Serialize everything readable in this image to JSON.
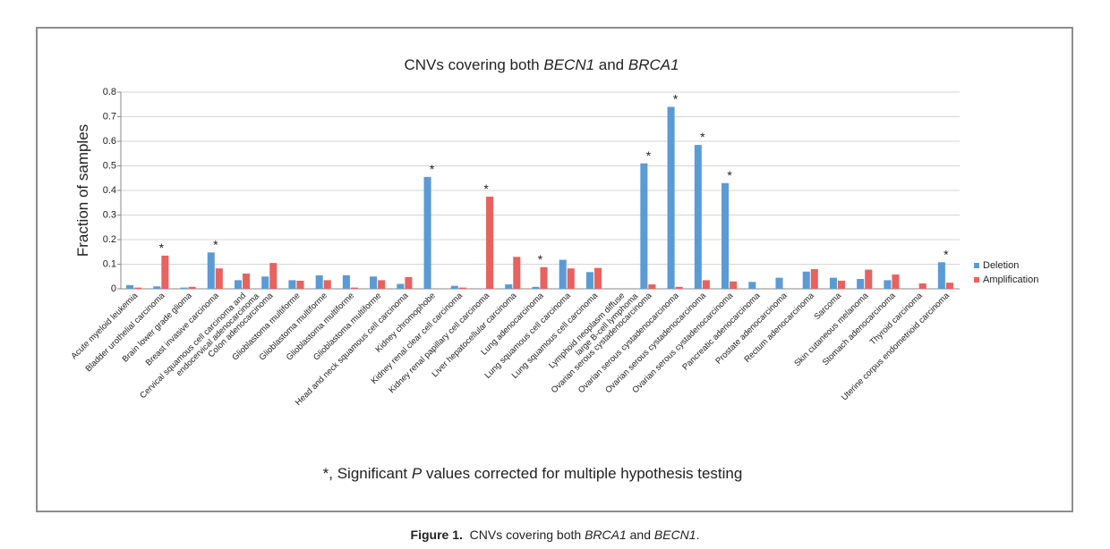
{
  "chart_data": {
    "type": "bar",
    "title": [
      "CNVs covering both ",
      "BECN1",
      " and ",
      "BRCA1"
    ],
    "y_label": "Fraction of samples",
    "footnote": [
      "*, Significant ",
      "P",
      " values corrected for multiple hypothesis testing"
    ],
    "categories": [
      "Acute myeloid leukemia",
      "Bladder urothelial carcinoma",
      "Brain lower grade glioma",
      "Breast invasive carcinoma",
      "Cervical squamous cell carcinoma and endocervical adenocarcinoma",
      "Colon adenocarcinoma",
      "Glioblastoma multiforme",
      "Glioblastoma multiforme",
      "Glioblastoma multiforme",
      "Glioblastoma multiforme",
      "Head and neck squamous cell carcinoma",
      "Kidney  chromophobe",
      "Kidney renal clear cell carcinoma",
      "Kidney renal papillary cell carcinoma",
      "Liver hepatocellular carcinoma",
      "Lung adenocarcinoma",
      "Lung squamous cell carcinoma",
      "Lung squamous cell carcinoma",
      "Lymphoid neoplasm diffuse large B-cell lymphoma",
      "Ovarian serous cystadenocarcinoma",
      "Ovarian serous cystadenocarcinoma",
      "Ovarian serous cystadenocarcinoma",
      "Ovarian serous cystadenocarcinoma",
      "Pancreatic adenocarcinoma",
      "Prostate adenocarcinoma",
      "Rectum adenocarcinoma",
      "Sarcoma",
      "Skin cutaneous melanoma",
      "Stomach adenocarcinoma",
      "Thyroid carcinoma",
      "Uterine corpus endometrioid carcinoma"
    ],
    "series": [
      {
        "name": "Deletion",
        "color": "#5b9bd5",
        "values": [
          0.015,
          0.01,
          0.005,
          0.148,
          0.035,
          0.05,
          0.035,
          0.055,
          0.055,
          0.05,
          0.02,
          0.455,
          0.012,
          0,
          0.018,
          0.008,
          0.118,
          0.068,
          0,
          0.51,
          0.74,
          0.585,
          0.43,
          0.028,
          0.045,
          0.07,
          0.045,
          0.04,
          0.035,
          0,
          0.108
        ]
      },
      {
        "name": "Amplification",
        "color": "#e8625f",
        "values": [
          0.005,
          0.135,
          0.008,
          0.083,
          0.062,
          0.105,
          0.033,
          0.035,
          0.005,
          0.035,
          0.048,
          0,
          0.005,
          0.375,
          0.13,
          0.088,
          0.083,
          0.085,
          0,
          0.018,
          0.008,
          0.035,
          0.03,
          0,
          0,
          0.08,
          0.033,
          0.078,
          0.058,
          0.022,
          0.025
        ]
      }
    ],
    "significance": [
      null,
      "*",
      null,
      "*",
      null,
      null,
      null,
      null,
      null,
      null,
      null,
      "*",
      null,
      "*",
      null,
      "*",
      null,
      null,
      null,
      "*",
      "*",
      "*",
      "*",
      null,
      null,
      null,
      null,
      null,
      null,
      null,
      "*"
    ],
    "ylim": [
      0,
      0.8
    ],
    "yticks": [
      0,
      0.1,
      0.2,
      0.3,
      0.4,
      0.5,
      0.6,
      0.7,
      0.8
    ],
    "grid": true,
    "legend": "right"
  },
  "caption": [
    "Figure 1.",
    "  CNVs covering both ",
    "BRCA1",
    " and ",
    "BECN1",
    "."
  ]
}
